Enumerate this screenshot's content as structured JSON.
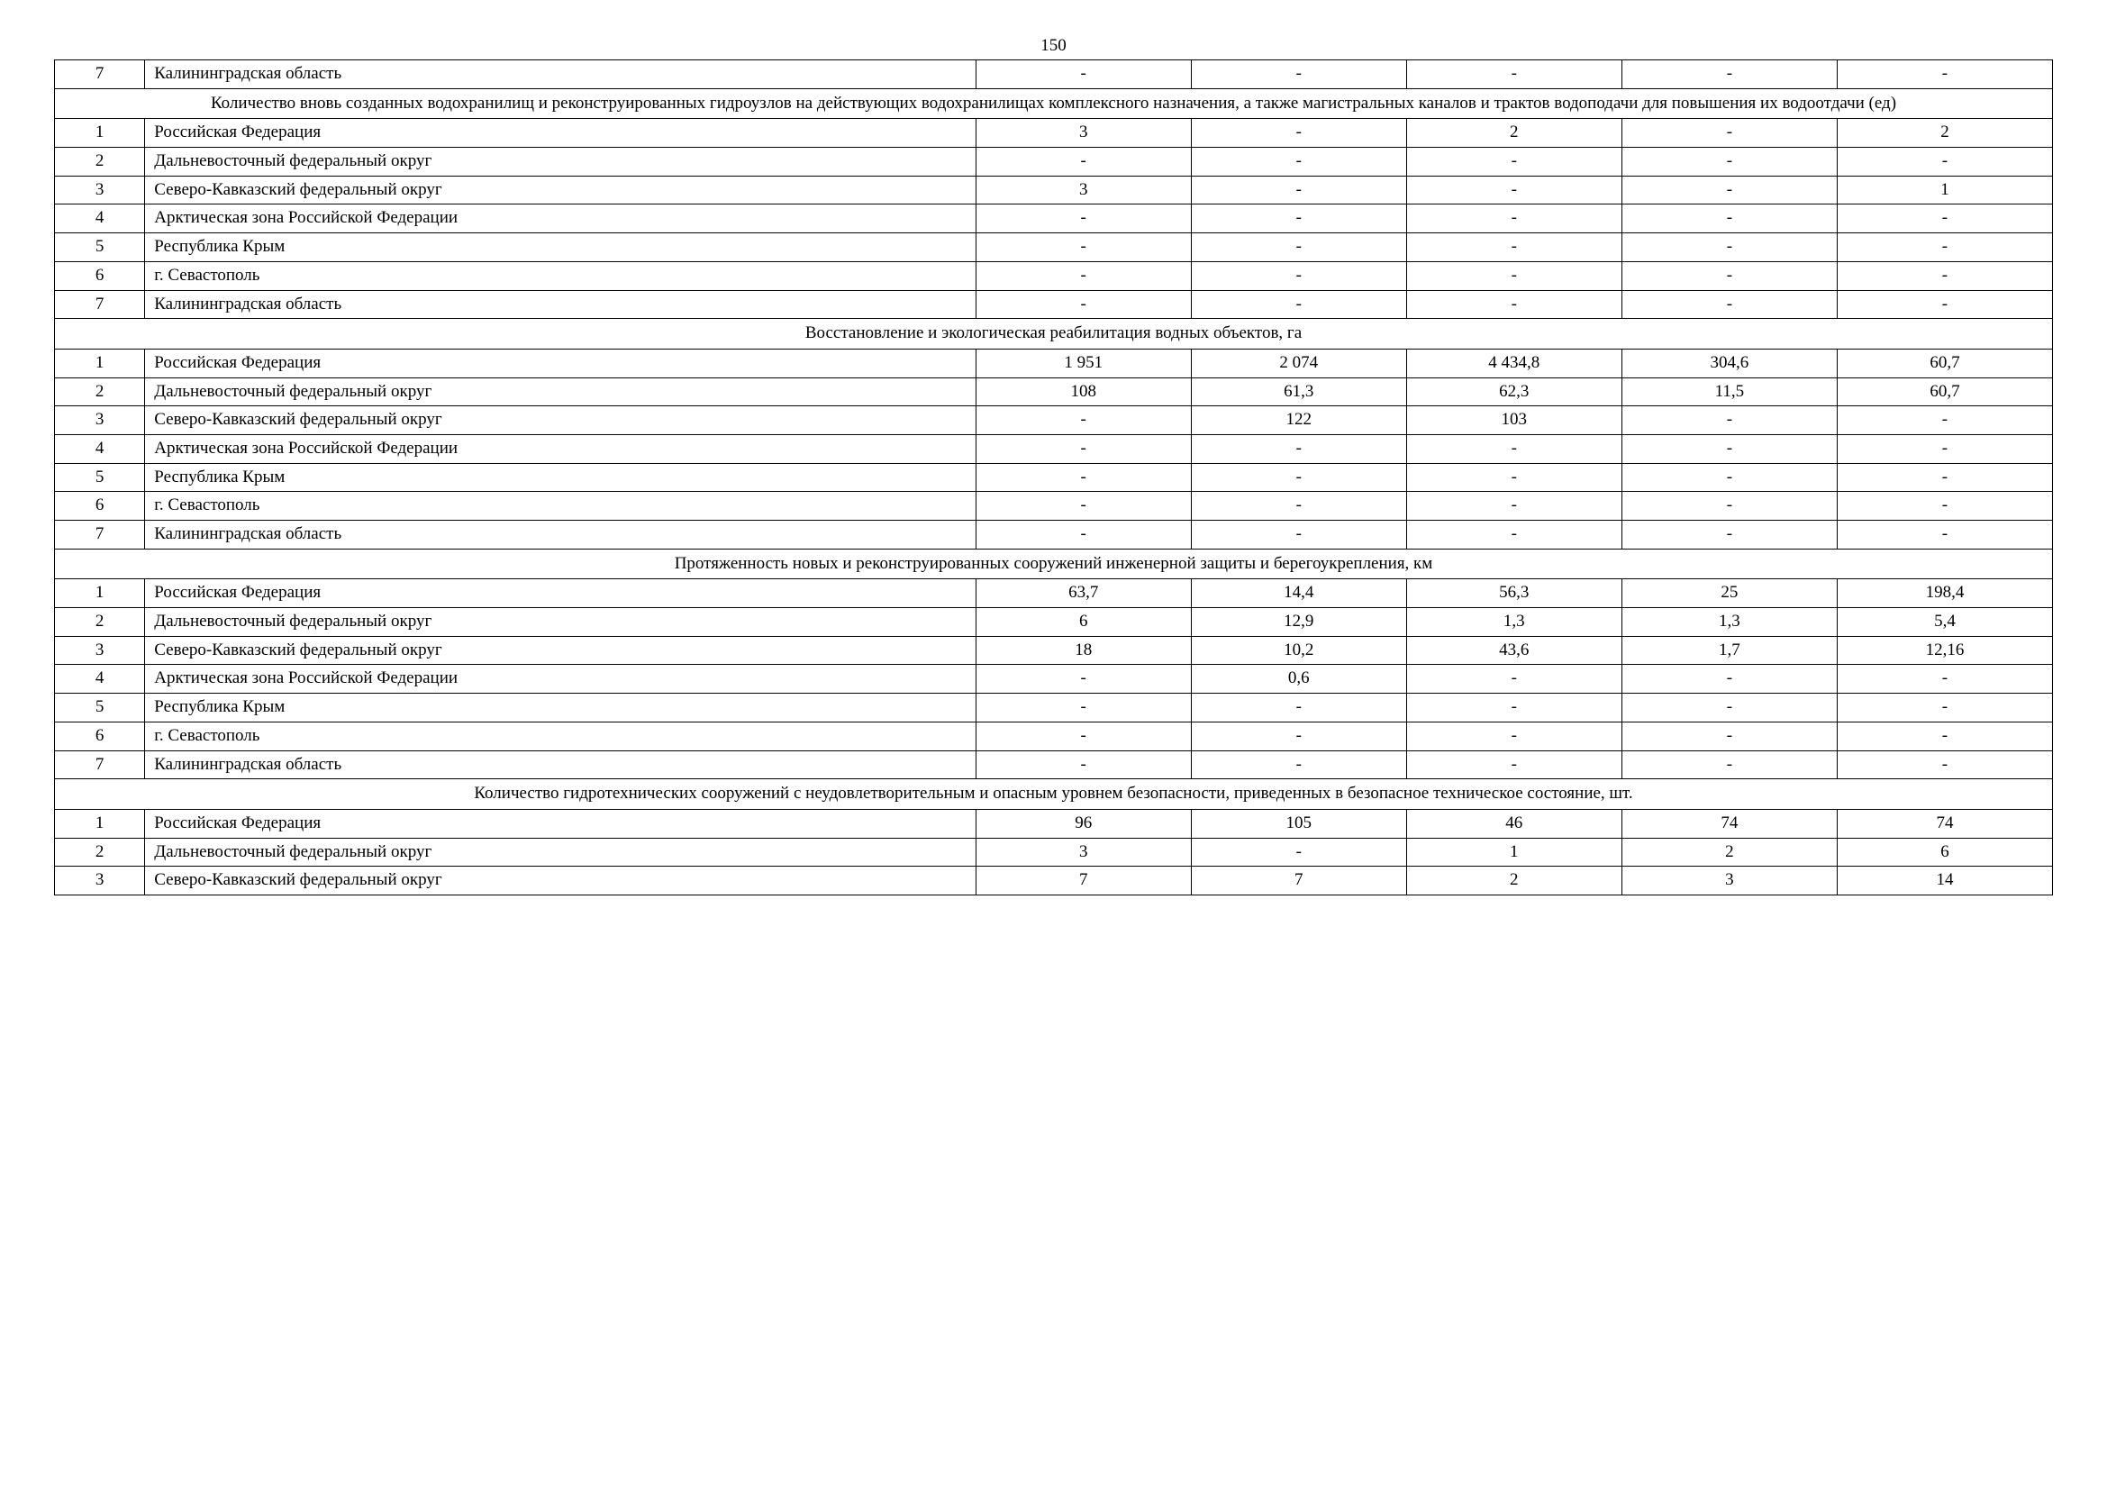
{
  "pageNumber": "150",
  "table": {
    "columns": {
      "count": 7,
      "widths_pct": [
        4,
        43,
        10.6,
        10.6,
        10.6,
        10.6,
        10.6
      ]
    },
    "font": {
      "family": "Times New Roman",
      "size_pt": 14,
      "color": "#000000"
    },
    "border_color": "#000000",
    "background_color": "#ffffff",
    "rows": [
      {
        "type": "data",
        "num": "7",
        "name": "Калининградская область",
        "v": [
          "-",
          "-",
          "-",
          "-",
          "-"
        ]
      },
      {
        "type": "header",
        "text": "Количество вновь созданных водохранилищ и реконструированных гидроузлов на действующих водохранилищах комплексного назначения, а также магистральных каналов и трактов водоподачи для повышения их водоотдачи (ед)"
      },
      {
        "type": "data",
        "num": "1",
        "name": "Российская Федерация",
        "v": [
          "3",
          "-",
          "2",
          "-",
          "2"
        ]
      },
      {
        "type": "data",
        "num": "2",
        "name": "Дальневосточный федеральный округ",
        "v": [
          "-",
          "-",
          "-",
          "-",
          "-"
        ]
      },
      {
        "type": "data",
        "num": "3",
        "name": "Северо-Кавказский федеральный округ",
        "v": [
          "3",
          "-",
          "-",
          "-",
          "1"
        ]
      },
      {
        "type": "data",
        "num": "4",
        "name": "Арктическая зона Российской Федерации",
        "v": [
          "-",
          "-",
          "-",
          "-",
          "-"
        ]
      },
      {
        "type": "data",
        "num": "5",
        "name": "Республика Крым",
        "v": [
          "-",
          "-",
          "-",
          "-",
          "-"
        ]
      },
      {
        "type": "data",
        "num": "6",
        "name": "г. Севастополь",
        "v": [
          "-",
          "-",
          "-",
          "-",
          "-"
        ]
      },
      {
        "type": "data",
        "num": "7",
        "name": "Калининградская область",
        "v": [
          "-",
          "-",
          "-",
          "-",
          "-"
        ]
      },
      {
        "type": "header",
        "text": "Восстановление и экологическая реабилитация водных объектов, га"
      },
      {
        "type": "data",
        "num": "1",
        "name": "Российская Федерация",
        "v": [
          "1 951",
          "2 074",
          "4 434,8",
          "304,6",
          "60,7"
        ]
      },
      {
        "type": "data",
        "num": "2",
        "name": "Дальневосточный федеральный округ",
        "v": [
          "108",
          "61,3",
          "62,3",
          "11,5",
          "60,7"
        ]
      },
      {
        "type": "data",
        "num": "3",
        "name": "Северо-Кавказский федеральный округ",
        "v": [
          "-",
          "122",
          "103",
          "-",
          "-"
        ]
      },
      {
        "type": "data",
        "num": "4",
        "name": "Арктическая зона Российской Федерации",
        "v": [
          "-",
          "-",
          "-",
          "-",
          "-"
        ]
      },
      {
        "type": "data",
        "num": "5",
        "name": "Республика Крым",
        "v": [
          "-",
          "-",
          "-",
          "-",
          "-"
        ]
      },
      {
        "type": "data",
        "num": "6",
        "name": "г. Севастополь",
        "v": [
          "-",
          "-",
          "-",
          "-",
          "-"
        ]
      },
      {
        "type": "data",
        "num": "7",
        "name": "Калининградская область",
        "v": [
          "-",
          "-",
          "-",
          "-",
          "-"
        ]
      },
      {
        "type": "header",
        "text": "Протяженность новых и реконструированных сооружений инженерной защиты и берегоукрепления, км"
      },
      {
        "type": "data",
        "num": "1",
        "name": "Российская Федерация",
        "v": [
          "63,7",
          "14,4",
          "56,3",
          "25",
          "198,4"
        ]
      },
      {
        "type": "data",
        "num": "2",
        "name": "Дальневосточный федеральный округ",
        "v": [
          "6",
          "12,9",
          "1,3",
          "1,3",
          "5,4"
        ]
      },
      {
        "type": "data",
        "num": "3",
        "name": "Северо-Кавказский федеральный округ",
        "v": [
          "18",
          "10,2",
          "43,6",
          "1,7",
          "12,16"
        ]
      },
      {
        "type": "data",
        "num": "4",
        "name": "Арктическая зона Российской Федерации",
        "v": [
          "-",
          "0,6",
          "-",
          "-",
          "-"
        ]
      },
      {
        "type": "data",
        "num": "5",
        "name": "Республика Крым",
        "v": [
          "-",
          "-",
          "-",
          "-",
          "-"
        ]
      },
      {
        "type": "data",
        "num": "6",
        "name": "г. Севастополь",
        "v": [
          "-",
          "-",
          "-",
          "-",
          "-"
        ]
      },
      {
        "type": "data",
        "num": "7",
        "name": "Калининградская область",
        "v": [
          "-",
          "-",
          "-",
          "-",
          "-"
        ]
      },
      {
        "type": "header",
        "text": "Количество гидротехнических сооружений с неудовлетворительным и опасным уровнем безопасности, приведенных в безопасное техническое состояние, шт."
      },
      {
        "type": "data",
        "num": "1",
        "name": "Российская Федерация",
        "v": [
          "96",
          "105",
          "46",
          "74",
          "74"
        ]
      },
      {
        "type": "data",
        "num": "2",
        "name": "Дальневосточный федеральный округ",
        "v": [
          "3",
          "-",
          "1",
          "2",
          "6"
        ]
      },
      {
        "type": "data",
        "num": "3",
        "name": "Северо-Кавказский федеральный округ",
        "v": [
          "7",
          "7",
          "2",
          "3",
          "14"
        ]
      }
    ]
  }
}
